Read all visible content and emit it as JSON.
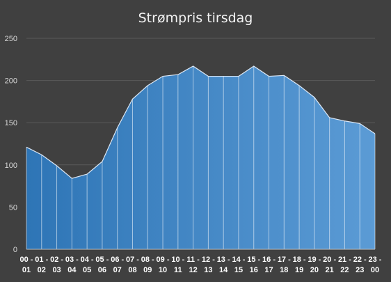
{
  "chart_data": {
    "type": "area",
    "title": "Strømpris tirsdag",
    "categories": [
      [
        "00 -",
        "01"
      ],
      [
        "01 -",
        "02"
      ],
      [
        "02 -",
        "03"
      ],
      [
        "03 -",
        "04"
      ],
      [
        "04 -",
        "05"
      ],
      [
        "05 -",
        "06"
      ],
      [
        "06 -",
        "07"
      ],
      [
        "07 -",
        "08"
      ],
      [
        "08 -",
        "09"
      ],
      [
        "09 -",
        "10"
      ],
      [
        "10 -",
        "11"
      ],
      [
        "11 -",
        "12"
      ],
      [
        "12 -",
        "13"
      ],
      [
        "13 -",
        "14"
      ],
      [
        "14 -",
        "15"
      ],
      [
        "15 -",
        "16"
      ],
      [
        "16 -",
        "17"
      ],
      [
        "17 -",
        "18"
      ],
      [
        "18 -",
        "19"
      ],
      [
        "19 -",
        "20"
      ],
      [
        "20 -",
        "21"
      ],
      [
        "21 -",
        "22"
      ],
      [
        "22 -",
        "23"
      ],
      [
        "23 -",
        "00"
      ]
    ],
    "values": [
      121,
      112,
      99,
      84,
      89,
      104,
      144,
      178,
      194,
      205,
      207,
      217,
      205,
      205,
      205,
      217,
      205,
      206,
      194,
      180,
      156,
      152,
      149,
      137
    ],
    "ylim": [
      0,
      250
    ],
    "yticks": [
      0,
      50,
      100,
      150,
      200,
      250
    ],
    "grid": true,
    "colors": {
      "background": "#404040",
      "fill_left": "#2e75b6",
      "fill_right": "#5b9bd5",
      "line": "#dbe7f5",
      "grid": "#5a5a5a"
    }
  }
}
